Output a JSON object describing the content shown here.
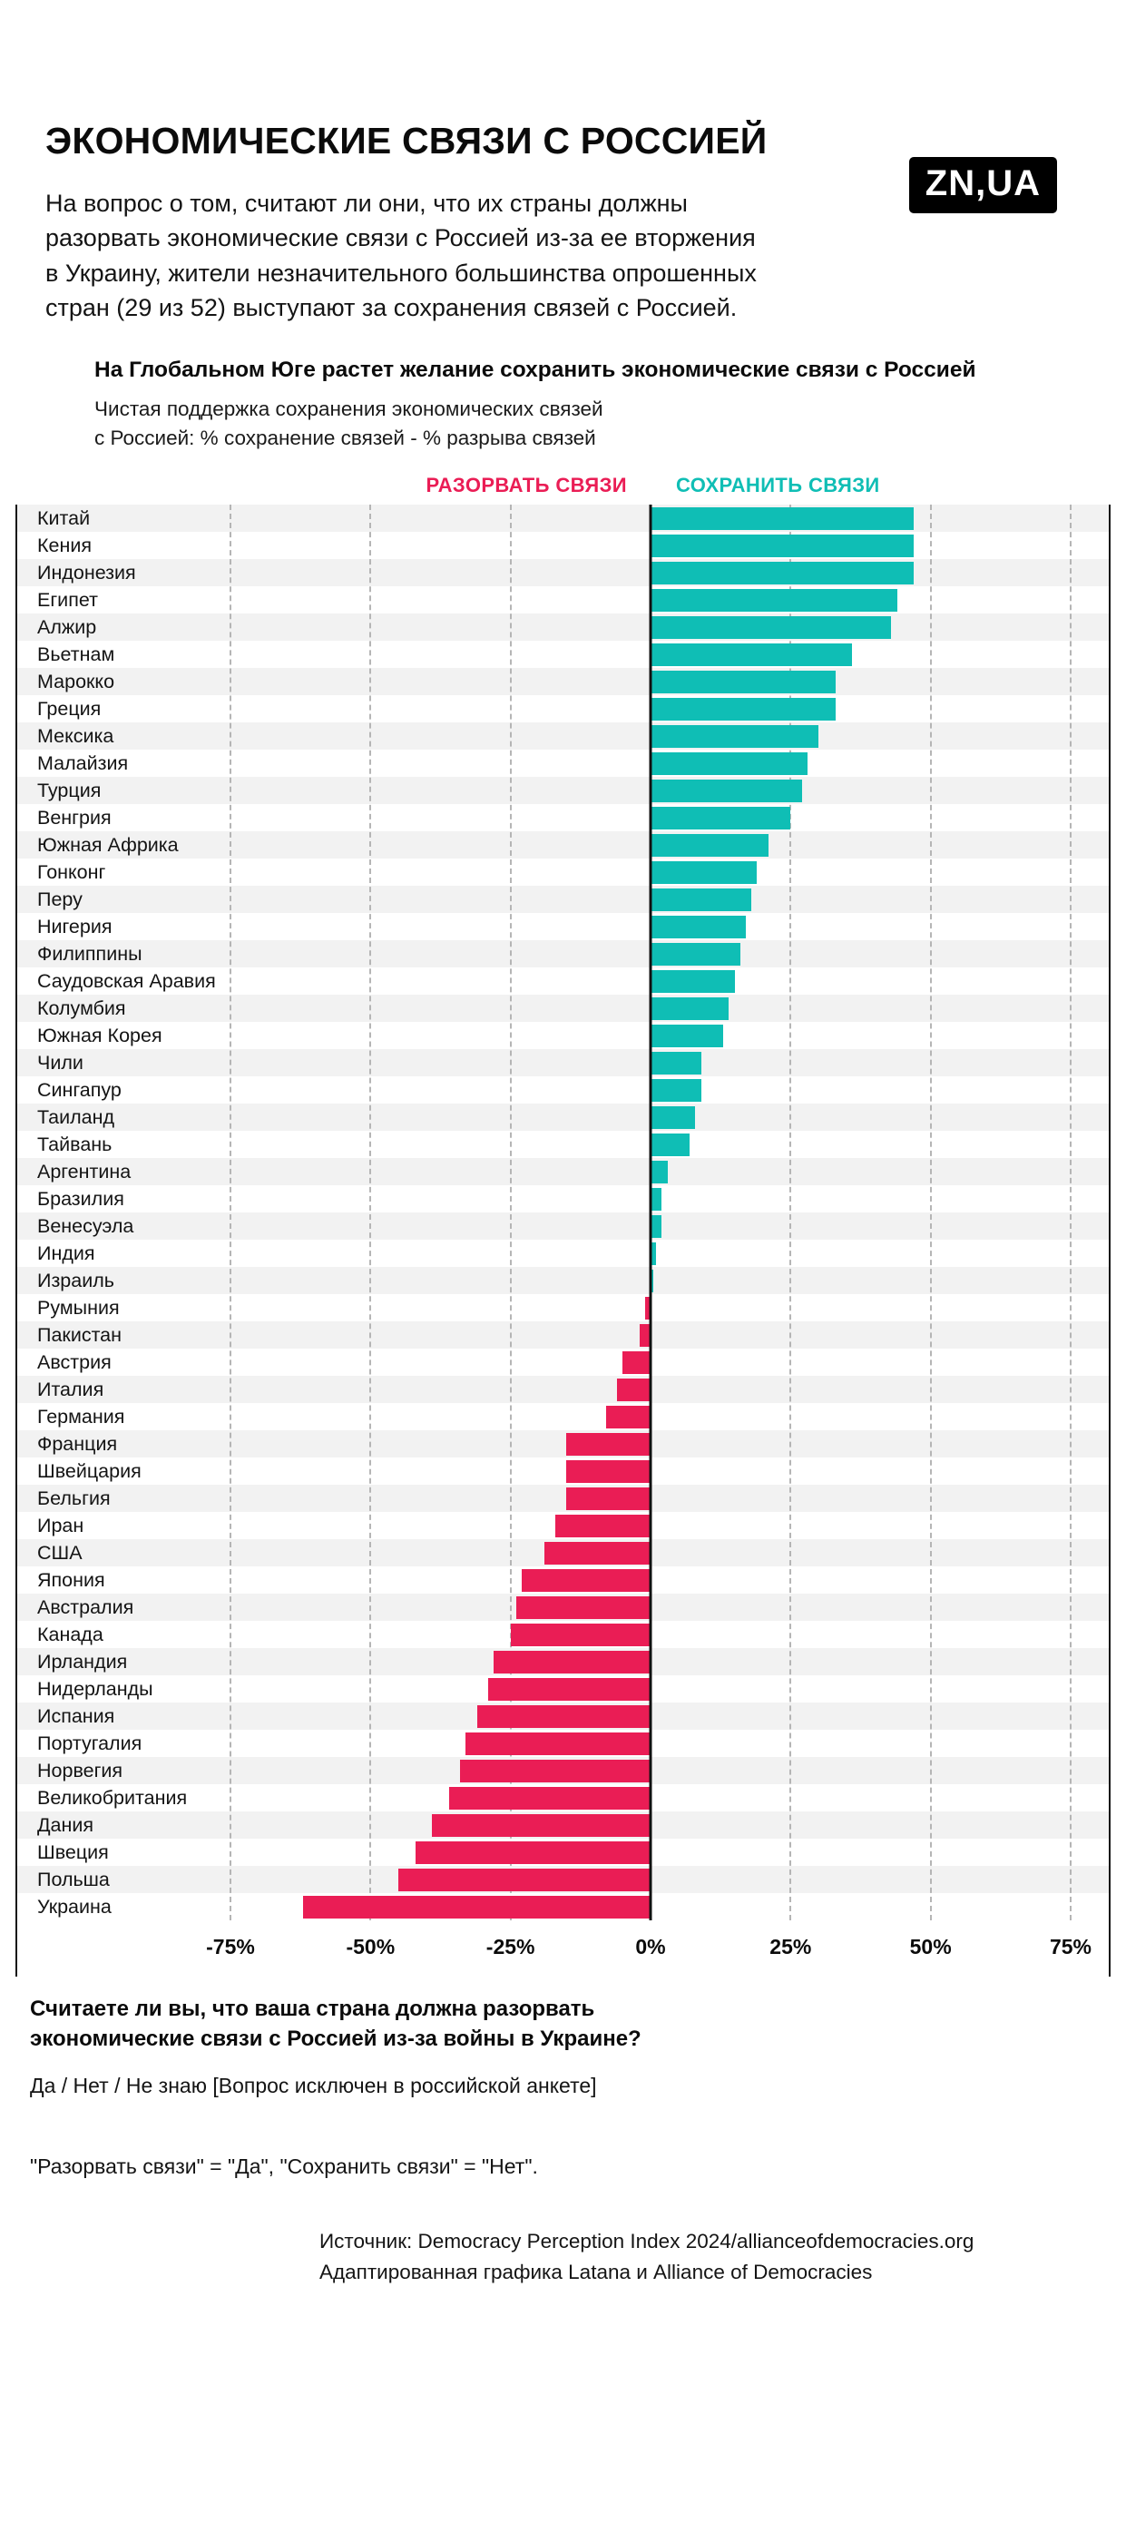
{
  "logo": {
    "text": "ZN,UA",
    "bg": "#000000",
    "fg": "#ffffff"
  },
  "header": {
    "title": "ЭКОНОМИЧЕСКИЕ СВЯЗИ С РОССИЕЙ",
    "intro": "На вопрос о том, считают ли они, что их страны должны разорвать экономические связи с Россией из-за ее вторжения в Украину, жители незначительного большинства опрошенных стран (29 из 52) выступают за сохранения связей с Россией."
  },
  "chart": {
    "description_lines": [
      "Чистая поддержка сохранения экономических связей",
      "с Россией: % сохранение связей - % разрыва связей"
    ],
    "colors": {
      "positive": "#0fbeb5",
      "negative": "#ea1d55",
      "stripe": "#f2f2f2",
      "zero_line": "#111111",
      "gridline": "#b5b5b5"
    }
  },
  "chart_data": {
    "type": "bar",
    "orientation": "horizontal",
    "title": "На Глобальном Юге растет желание сохранить экономические связи с Россией",
    "subtitle": "Чистая поддержка сохранения экономических связей с Россией: % сохранение связей - % разрыва связей",
    "legend": [
      "РАЗОРВАТЬ СВЯЗИ",
      "СОХРАНИТЬ СВЯЗИ"
    ],
    "xlim": [
      -75,
      75
    ],
    "x_ticks": [
      -75,
      -50,
      -25,
      0,
      25,
      50,
      75
    ],
    "x_tick_labels": [
      "-75%",
      "-50%",
      "-25%",
      "0%",
      "25%",
      "50%",
      "75%"
    ],
    "grid": "dashed vertical gridlines at ticks, solid line at zero",
    "categories": [
      "Китай",
      "Кения",
      "Индонезия",
      "Египет",
      "Алжир",
      "Вьетнам",
      "Марокко",
      "Греция",
      "Мексика",
      "Малайзия",
      "Турция",
      "Венгрия",
      "Южная Африка",
      "Гонконг",
      "Перу",
      "Нигерия",
      "Филиппины",
      "Саудовская Аравия",
      "Колумбия",
      "Южная Корея",
      "Чили",
      "Сингапур",
      "Таиланд",
      "Тайвань",
      "Аргентина",
      "Бразилия",
      "Венесуэла",
      "Индия",
      "Израиль",
      "Румыния",
      "Пакистан",
      "Австрия",
      "Италия",
      "Германия",
      "Франция",
      "Швейцария",
      "Бельгия",
      "Иран",
      "США",
      "Япония",
      "Австралия",
      "Канада",
      "Ирландия",
      "Нидерланды",
      "Испания",
      "Португалия",
      "Норвегия",
      "Великобритания",
      "Дания",
      "Швеция",
      "Польша",
      "Украина"
    ],
    "values": [
      47,
      47,
      47,
      44,
      43,
      36,
      33,
      33,
      30,
      28,
      27,
      25,
      21,
      19,
      18,
      17,
      16,
      15,
      14,
      13,
      9,
      9,
      8,
      7,
      3,
      2,
      2,
      1,
      0.5,
      -1,
      -2,
      -5,
      -6,
      -8,
      -15,
      -15,
      -15,
      -17,
      -19,
      -23,
      -24,
      -25,
      -28,
      -29,
      -31,
      -33,
      -34,
      -36,
      -39,
      -42,
      -45,
      -62
    ]
  },
  "footer": {
    "question": "Считаете ли вы, что ваша страна должна разорвать экономические связи с Россией из-за войны в Украине?",
    "options": "Да / Нет / Не знаю [Вопрос исключен в российской анкете]",
    "note": "\"Разорвать связи\" = \"Да\", \"Сохранить связи\" = \"Нет\".",
    "source_line1": "Источник: Democracy Perception Index 2024/allianceofdemocracies.org",
    "source_line2": "Адаптированная графика Latana и Alliance of Democracies"
  }
}
